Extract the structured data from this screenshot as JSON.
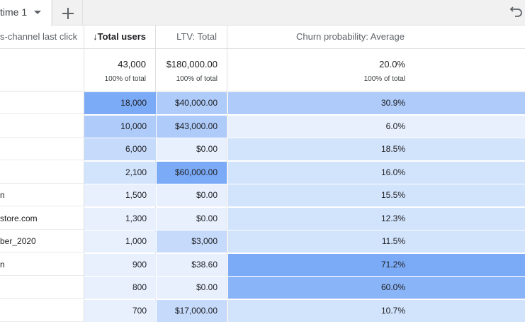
{
  "tab": {
    "label": "time 1"
  },
  "columns": {
    "dimension": "s-channel last click",
    "total_users": "↓Total users",
    "ltv": "LTV: Total",
    "churn": "Churn probability: Average"
  },
  "totals": {
    "total_users": "43,000",
    "total_users_pct": "100% of total",
    "ltv": "$180,000.00",
    "ltv_pct": "100% of total",
    "churn": "20.0%",
    "churn_pct": "100% of total"
  },
  "heat_colors": [
    "#e8f0fe",
    "#d2e3fc",
    "#c6dafc",
    "#aecbfa",
    "#8ab4f8",
    "#7baaf7"
  ],
  "rows": [
    {
      "dim": "",
      "users": "18,000",
      "ltv": "$40,000.00",
      "churn": "30.9%",
      "users_level": 0.92,
      "ltv_level": 0.6,
      "churn_level": 0.5
    },
    {
      "dim": "",
      "users": "10,000",
      "ltv": "$43,000.00",
      "churn": "6.0%",
      "users_level": 0.55,
      "ltv_level": 0.62,
      "churn_level": 0.08
    },
    {
      "dim": "",
      "users": "6,000",
      "ltv": "$0.00",
      "churn": "18.5%",
      "users_level": 0.3,
      "ltv_level": 0.02,
      "churn_level": 0.26
    },
    {
      "dim": "",
      "users": "2,100",
      "ltv": "$60,000.00",
      "churn": "16.0%",
      "users_level": 0.12,
      "ltv_level": 0.95,
      "churn_level": 0.22
    },
    {
      "dim": "n",
      "users": "1,500",
      "ltv": "$0.00",
      "churn": "15.5%",
      "users_level": 0.08,
      "ltv_level": 0.02,
      "churn_level": 0.21
    },
    {
      "dim": "store.com",
      "users": "1,300",
      "ltv": "$0.00",
      "churn": "12.3%",
      "users_level": 0.07,
      "ltv_level": 0.02,
      "churn_level": 0.17
    },
    {
      "dim": "ber_2020",
      "users": "1,000",
      "ltv": "$3,000",
      "churn": "11.5%",
      "users_level": 0.05,
      "ltv_level": 0.3,
      "churn_level": 0.16
    },
    {
      "dim": "n",
      "users": "900",
      "ltv": "$38.60",
      "churn": "71.2%",
      "users_level": 0.04,
      "ltv_level": 0.02,
      "churn_level": 0.95
    },
    {
      "dim": "",
      "users": "800",
      "ltv": "$0.00",
      "churn": "60.0%",
      "users_level": 0.03,
      "ltv_level": 0.02,
      "churn_level": 0.88
    },
    {
      "dim": "",
      "users": "700",
      "ltv": "$17,000.00",
      "churn": "10.7%",
      "users_level": 0.02,
      "ltv_level": 0.4,
      "churn_level": 0.15
    }
  ]
}
